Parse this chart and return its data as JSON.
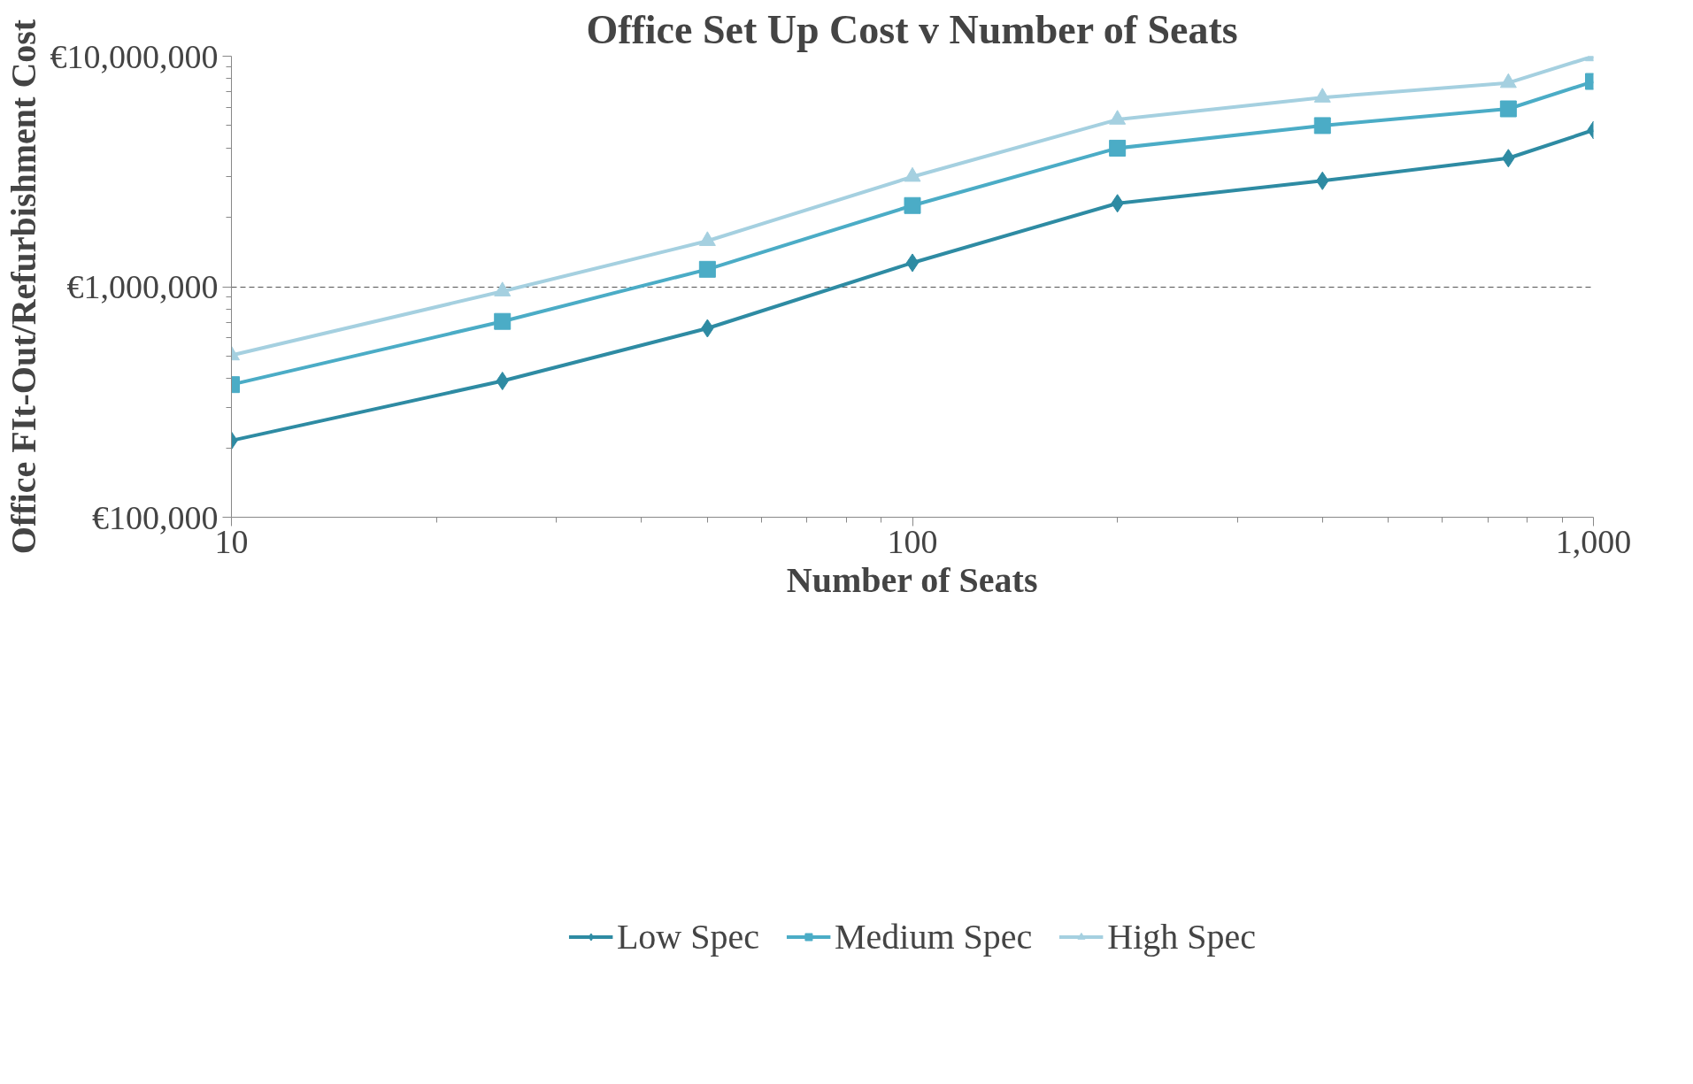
{
  "chart_data": {
    "type": "line",
    "title": "Office Set Up Cost v Number of Seats",
    "xlabel": "Number of Seats",
    "ylabel": "Office FIt-Out/Refurbishment Cost",
    "log": "xy",
    "x": [
      10,
      25,
      50,
      100,
      200,
      400,
      750,
      1000
    ],
    "xlim": [
      10,
      1000
    ],
    "xticks": [
      10,
      100,
      {
        "value": 1000,
        "label": "1,000"
      }
    ],
    "ylim": [
      100000,
      10000000
    ],
    "yticks": [
      {
        "value": 100000,
        "label": "€100,000"
      },
      {
        "value": 1000000,
        "label": "€1,000,000"
      },
      {
        "value": 10000000,
        "label": "€10,000,000"
      }
    ],
    "grid": "y",
    "legend": "bottom",
    "line_style": "solid",
    "series": [
      {
        "name": "Low Spec",
        "color": "#2e8ba3",
        "marker": "diamond",
        "values": [
          215000,
          390000,
          660000,
          1270000,
          2300000,
          2880000,
          3610000,
          4780000
        ]
      },
      {
        "name": "Medium Spec",
        "color": "#4bacc6",
        "marker": "square",
        "values": [
          376000,
          707000,
          1190000,
          2250000,
          3990000,
          5000000,
          5910000,
          7770000
        ]
      },
      {
        "name": "High Spec",
        "color": "#a5d0e0",
        "marker": "triangle",
        "values": [
          504000,
          955000,
          1580000,
          3000000,
          5310000,
          6620000,
          7660000,
          10000000
        ]
      }
    ]
  }
}
